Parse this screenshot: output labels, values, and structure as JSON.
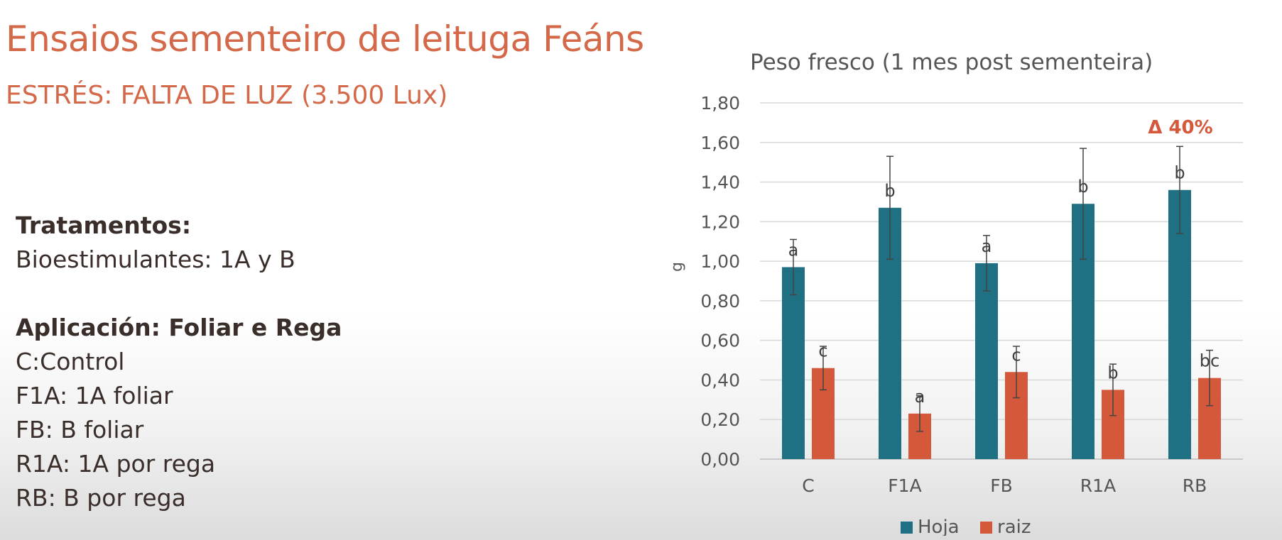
{
  "slide": {
    "title": "Ensaios sementeiro de leituga Feáns",
    "subtitle": "ESTRÉS: FALTA DE LUZ (3.500 Lux)",
    "treatments_heading": "Tratamentos:",
    "treatments_line": "Bioestimulantes: 1A y B",
    "application_heading": "Aplicación: Foliar e Rega",
    "application_items": [
      "C:Control",
      "F1A:  1A foliar",
      "FB: B foliar",
      "R1A: 1A por rega",
      "RB: B por rega"
    ]
  },
  "chart_data": {
    "type": "bar",
    "title": "Peso fresco (1 mes post sementeira)",
    "xlabel": "",
    "ylabel": "g",
    "ylim": [
      0,
      1.8
    ],
    "yticks": [
      "0,00",
      "0,20",
      "0,40",
      "0,60",
      "0,80",
      "1,00",
      "1,20",
      "1,40",
      "1,60",
      "1,80"
    ],
    "categories": [
      "C",
      "F1A",
      "FB",
      "R1A",
      "RB"
    ],
    "grid": true,
    "legend_position": "bottom",
    "series": [
      {
        "name": "Hoja",
        "color": "#1f7082",
        "values": [
          0.97,
          1.27,
          0.99,
          1.29,
          1.36
        ],
        "errors": [
          0.14,
          0.26,
          0.14,
          0.28,
          0.22
        ],
        "labels": [
          "a",
          "b",
          "a",
          "b",
          "b"
        ]
      },
      {
        "name": "raiz",
        "color": "#d4583a",
        "values": [
          0.46,
          0.23,
          0.44,
          0.35,
          0.41
        ],
        "errors": [
          0.11,
          0.09,
          0.13,
          0.13,
          0.14
        ],
        "labels": [
          "c",
          "a",
          "c",
          "b",
          "bc"
        ]
      }
    ],
    "annotation": {
      "text": "Δ 40%",
      "color": "#d4583a"
    }
  }
}
